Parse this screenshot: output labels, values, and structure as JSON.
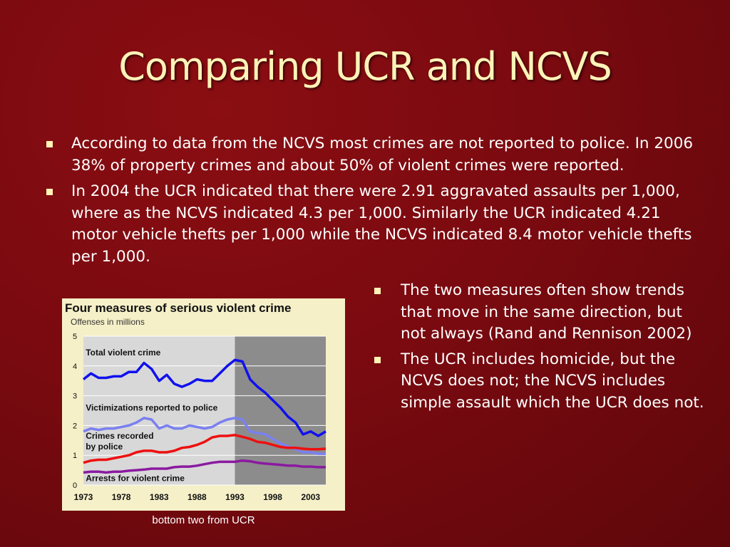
{
  "slide": {
    "title": "Comparing UCR and NCVS",
    "bullets": [
      "According to data from the NCVS most crimes are not reported to police.  In 2006 38% of property crimes and about 50% of violent crimes were reported.",
      "In 2004 the UCR indicated that there were 2.91 aggravated assaults per 1,000, where as the NCVS indicated 4.3 per 1,000. Similarly the UCR indicated 4.21 motor vehicle thefts per 1,000 while the NCVS indicated 8.4 motor vehicle thefts per 1,000."
    ],
    "right_bullets": [
      "The two measures often show trends that move in the same direction, but not always (Rand and Rennison 2002)",
      "The UCR includes homicide, but the NCVS does not; the NCVS includes simple assault which the UCR does not."
    ],
    "caption": "bottom two from UCR",
    "colors": {
      "background": "#7a0a10",
      "title": "#fff3b8",
      "bullet": "#fff3b8",
      "text": "#ffffff"
    }
  },
  "chart_data": {
    "type": "line",
    "title": "Four measures of serious violent crime",
    "subtitle": "Offenses in millions",
    "xlabel": "",
    "ylabel": "",
    "ylim": [
      0,
      5
    ],
    "xlim": [
      1973,
      2005
    ],
    "yticks": [
      0,
      1,
      2,
      3,
      4,
      5
    ],
    "xticks": [
      1973,
      1978,
      1983,
      1988,
      1993,
      1998,
      2003
    ],
    "shaded_from": 1993,
    "grid": true,
    "x": [
      1973,
      1974,
      1975,
      1976,
      1977,
      1978,
      1979,
      1980,
      1981,
      1982,
      1983,
      1984,
      1985,
      1986,
      1987,
      1988,
      1989,
      1990,
      1991,
      1992,
      1993,
      1994,
      1995,
      1996,
      1997,
      1998,
      1999,
      2000,
      2001,
      2002,
      2003,
      2004,
      2005
    ],
    "series": [
      {
        "name": "Total violent crime",
        "color": "#1010ee",
        "values": [
          3.55,
          3.75,
          3.6,
          3.6,
          3.65,
          3.65,
          3.8,
          3.8,
          4.1,
          3.9,
          3.5,
          3.7,
          3.4,
          3.3,
          3.4,
          3.55,
          3.5,
          3.5,
          3.75,
          4.0,
          4.2,
          4.15,
          3.55,
          3.3,
          3.1,
          2.85,
          2.6,
          2.3,
          2.1,
          1.7,
          1.8,
          1.65,
          1.8
        ]
      },
      {
        "name": "Victimizations reported to police",
        "color": "#7a80f0",
        "values": [
          1.8,
          1.9,
          1.85,
          1.9,
          1.9,
          1.95,
          2.0,
          2.1,
          2.25,
          2.2,
          1.9,
          2.0,
          1.9,
          1.9,
          2.0,
          1.95,
          1.9,
          1.95,
          2.1,
          2.2,
          2.25,
          2.2,
          1.8,
          1.75,
          1.7,
          1.55,
          1.4,
          1.3,
          1.2,
          1.1,
          1.1,
          1.05,
          1.05
        ]
      },
      {
        "name": "Crimes recorded by police",
        "color": "#ee1010",
        "values": [
          0.75,
          0.82,
          0.85,
          0.85,
          0.9,
          0.95,
          1.0,
          1.1,
          1.15,
          1.15,
          1.1,
          1.1,
          1.15,
          1.25,
          1.28,
          1.35,
          1.45,
          1.6,
          1.65,
          1.65,
          1.68,
          1.62,
          1.55,
          1.45,
          1.42,
          1.35,
          1.28,
          1.25,
          1.25,
          1.22,
          1.2,
          1.2,
          1.22
        ]
      },
      {
        "name": "Arrests for violent crime",
        "color": "#8a1aa0",
        "values": [
          0.42,
          0.45,
          0.45,
          0.42,
          0.45,
          0.45,
          0.48,
          0.5,
          0.52,
          0.55,
          0.55,
          0.55,
          0.6,
          0.62,
          0.62,
          0.65,
          0.7,
          0.75,
          0.78,
          0.78,
          0.78,
          0.82,
          0.8,
          0.75,
          0.72,
          0.7,
          0.68,
          0.65,
          0.65,
          0.62,
          0.62,
          0.6,
          0.6
        ]
      }
    ],
    "labels": [
      {
        "text": "Total violent crime",
        "x": 1973.3,
        "y": 4.35
      },
      {
        "text": "Victimizations reported to police",
        "x": 1973.3,
        "y": 2.5
      },
      {
        "text": "Crimes recorded",
        "x": 1973.3,
        "y": 1.55
      },
      {
        "text": "by police",
        "x": 1973.3,
        "y": 1.2
      },
      {
        "text": "Arrests for violent crime",
        "x": 1973.3,
        "y": 0.13
      }
    ]
  }
}
